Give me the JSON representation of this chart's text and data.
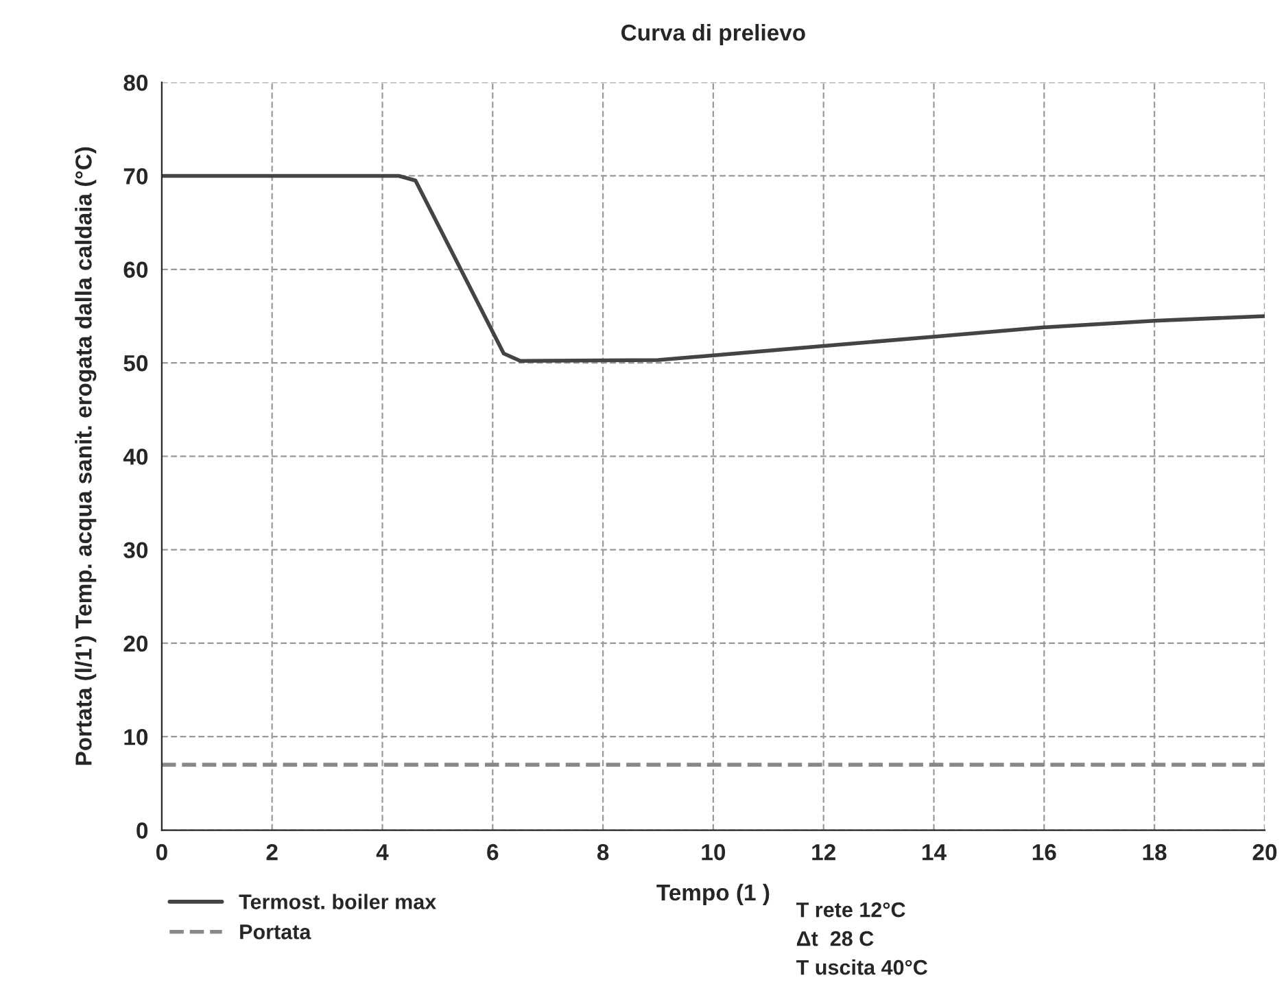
{
  "chart_data": {
    "type": "line",
    "title": "Curva di prelievo",
    "xlabel": "Tempo (1 )",
    "ylabel": "Portata (l/1') Temp. acqua sanit. erogata dalla caldaia (°C)",
    "xlim": [
      0,
      20
    ],
    "xticks": [
      0,
      2,
      4,
      6,
      8,
      10,
      12,
      14,
      16,
      18,
      20
    ],
    "ylim": [
      0,
      80
    ],
    "yticks": [
      0,
      10,
      20,
      30,
      40,
      50,
      60,
      70,
      80
    ],
    "grid": true,
    "legend": "bottom left",
    "series": [
      {
        "name": "Termost. boiler max",
        "color": "#444444",
        "line_style": "solid",
        "x": [
          0,
          4.3,
          4.6,
          6.2,
          6.5,
          9,
          10,
          12,
          14,
          16,
          18,
          20
        ],
        "values": [
          70,
          70,
          69.5,
          51,
          50.2,
          50.3,
          50.8,
          51.8,
          52.8,
          53.8,
          54.5,
          55
        ]
      },
      {
        "name": "Portata",
        "color": "#888888",
        "line_style": "dashed",
        "x": [
          0,
          20
        ],
        "values": [
          7,
          7
        ]
      }
    ],
    "annotations": [
      "T rete 12°C",
      "Δt  28 C",
      "T uscita 40°C"
    ]
  }
}
